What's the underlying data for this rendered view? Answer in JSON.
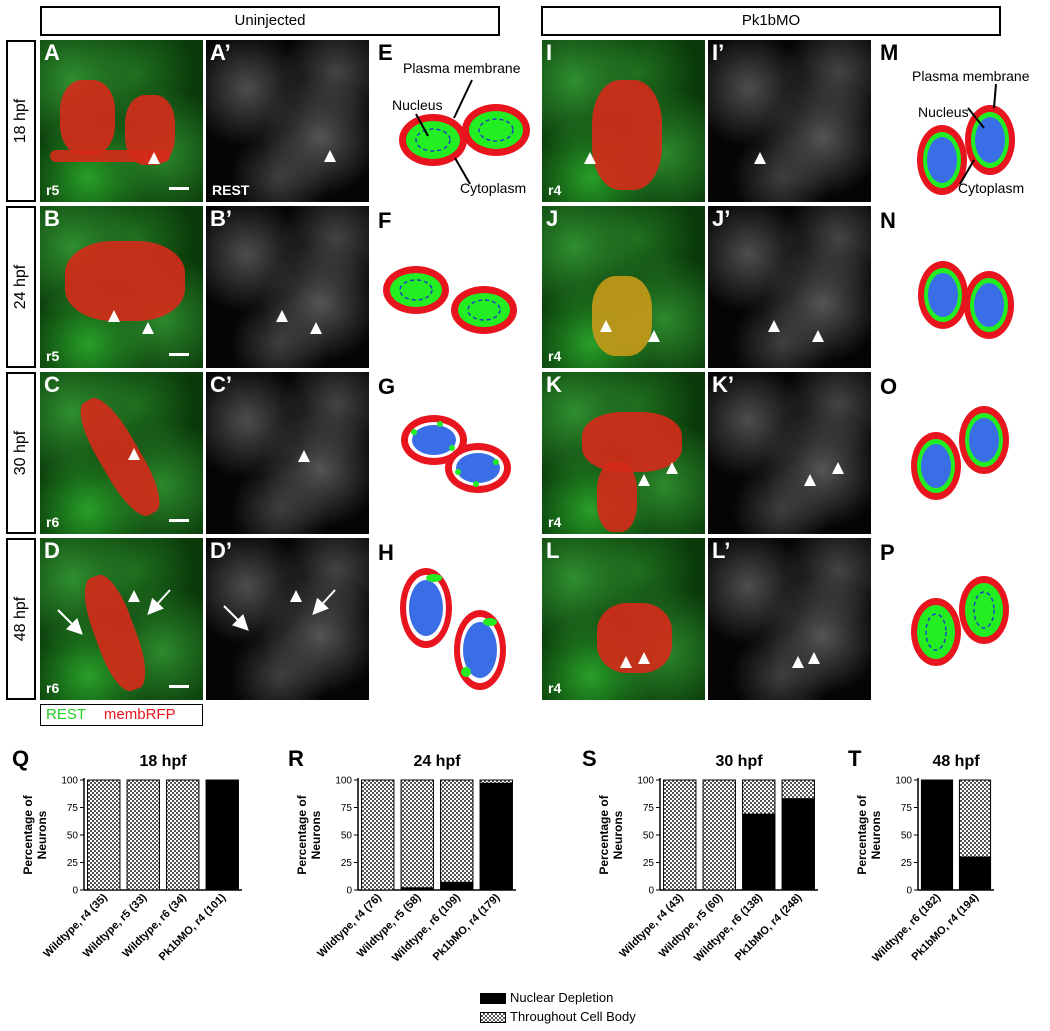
{
  "headers": {
    "uninjected": "Uninjected",
    "pk1bmo": "Pk1bMO"
  },
  "rows": [
    "18 hpf",
    "24 hpf",
    "30 hpf",
    "48 hpf"
  ],
  "panels": {
    "A": "A",
    "Ap": "A’",
    "B": "B",
    "Bp": "B’",
    "C": "C",
    "Cp": "C’",
    "D": "D",
    "Dp": "D’",
    "E": "E",
    "F": "F",
    "G": "G",
    "H": "H",
    "I": "I",
    "Ip": "I’",
    "J": "J",
    "Jp": "J’",
    "K": "K",
    "Kp": "K’",
    "L": "L",
    "Lp": "L’",
    "M": "M",
    "N": "N",
    "O": "O",
    "P": "P"
  },
  "rhombomeres": {
    "A": "r5",
    "B": "r5",
    "C": "r6",
    "D": "r6",
    "I": "r4",
    "J": "r4",
    "K": "r4",
    "L": "r4"
  },
  "rest_label": "REST",
  "diagram_labels": {
    "plasma_membrane": "Plasma membrane",
    "nucleus": "Nucleus",
    "cytoplasm": "Cytoplasm"
  },
  "stain_legend": {
    "rest": "REST",
    "membrfp": "membRFP"
  },
  "colors": {
    "rest_green": "#22ee22",
    "membrane_red": "#e8141e",
    "nucleus_blue": "#3a6ee6"
  },
  "chart_legend": {
    "nuclear": "Nuclear Depletion",
    "throughout": "Throughout Cell Body"
  },
  "chart_data": [
    {
      "letter": "Q",
      "type": "bar",
      "title": "18 hpf",
      "ylabel": "Percentage of Neurons",
      "ylim": [
        0,
        100
      ],
      "categories": [
        "Wildtype, r4 (35)",
        "Wildtype, r5 (33)",
        "Wildtype, r6 (34)",
        "Pk1bMO, r4 (101)"
      ],
      "series": [
        {
          "name": "Nuclear Depletion",
          "values": [
            0,
            0,
            0,
            100
          ]
        },
        {
          "name": "Throughout Cell Body",
          "values": [
            100,
            100,
            100,
            0
          ]
        }
      ]
    },
    {
      "letter": "R",
      "type": "bar",
      "title": "24 hpf",
      "ylabel": "Percentage of Neurons",
      "ylim": [
        0,
        100
      ],
      "categories": [
        "Wildtype, r4 (76)",
        "Wildtype, r5 (58)",
        "Wildtype, r6 (109)",
        "Pk1bMO, r4 (179)"
      ],
      "series": [
        {
          "name": "Nuclear Depletion",
          "values": [
            0,
            2,
            7,
            97
          ]
        },
        {
          "name": "Throughout Cell Body",
          "values": [
            100,
            98,
            93,
            3
          ]
        }
      ]
    },
    {
      "letter": "S",
      "type": "bar",
      "title": "30 hpf",
      "ylabel": "Percentage of Neurons",
      "ylim": [
        0,
        100
      ],
      "categories": [
        "Wildtype, r4 (43)",
        "Wildtype, r5 (60)",
        "Wildtype, r6 (138)",
        "Pk1bMO, r4 (248)"
      ],
      "series": [
        {
          "name": "Nuclear Depletion",
          "values": [
            0,
            0,
            69,
            83
          ]
        },
        {
          "name": "Throughout Cell Body",
          "values": [
            100,
            100,
            31,
            17
          ]
        }
      ]
    },
    {
      "letter": "T",
      "type": "bar",
      "title": "48 hpf",
      "ylabel": "Percentage of Neurons",
      "ylim": [
        0,
        100
      ],
      "categories": [
        "Wildtype, r6 (182)",
        "Pk1bMO, r4 (194)"
      ],
      "series": [
        {
          "name": "Nuclear Depletion",
          "values": [
            100,
            30
          ]
        },
        {
          "name": "Throughout Cell Body",
          "values": [
            0,
            70
          ]
        }
      ]
    }
  ]
}
